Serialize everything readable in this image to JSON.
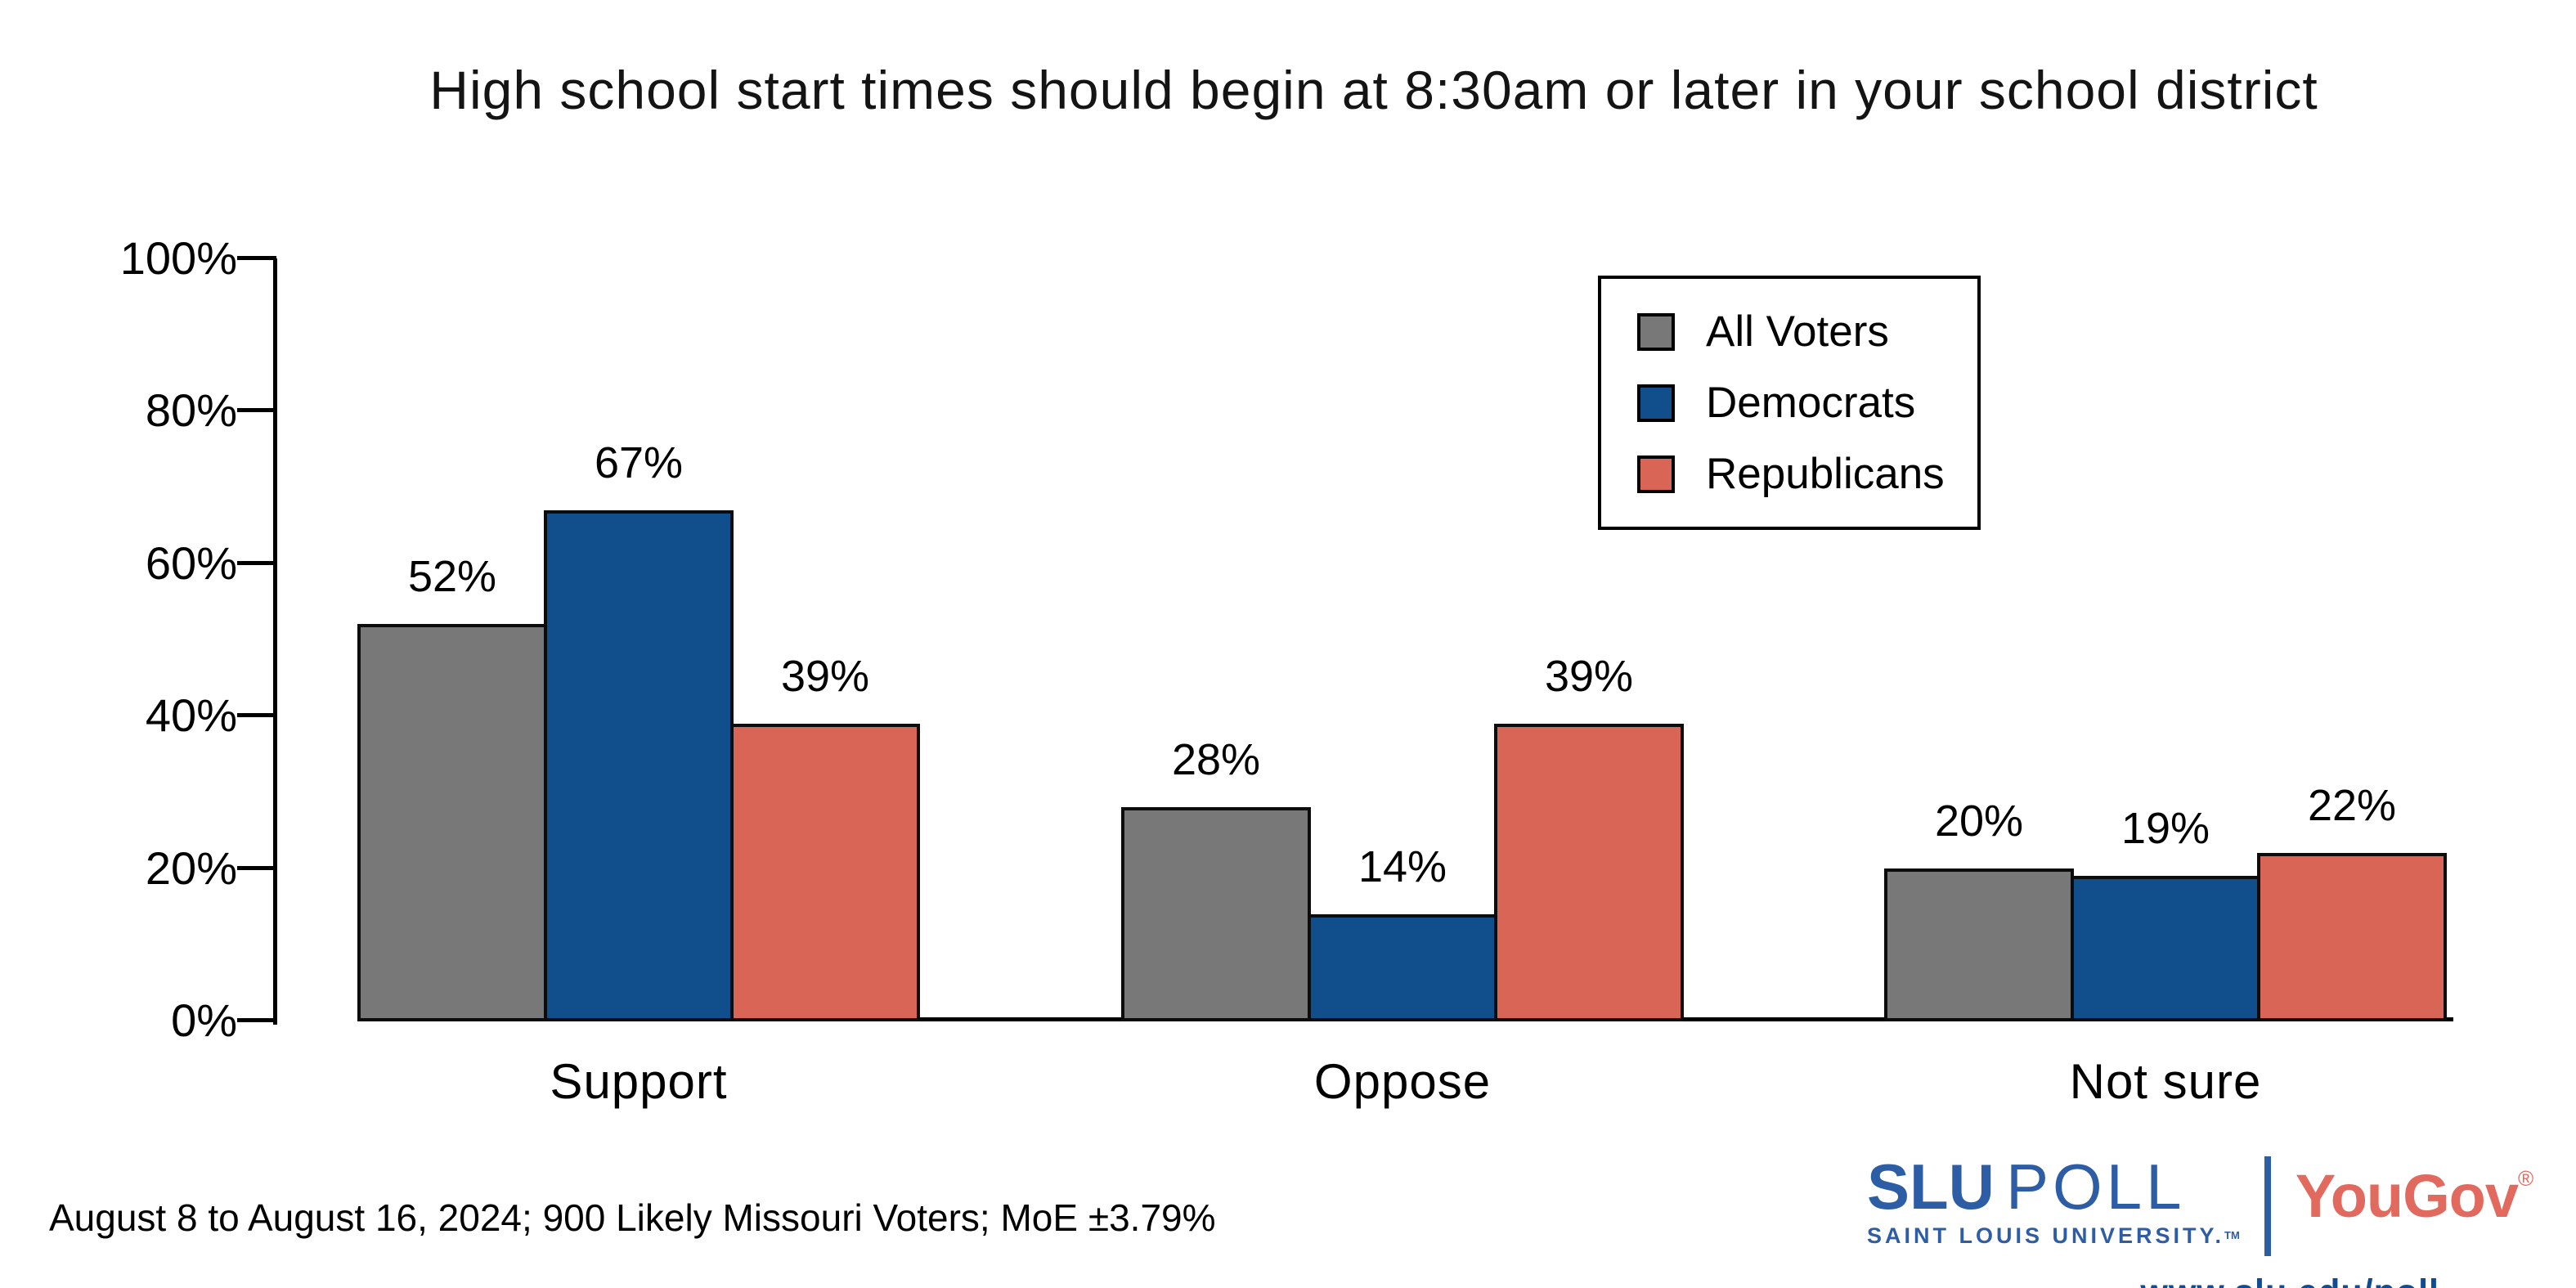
{
  "chart_data": {
    "type": "bar",
    "title": "High school start times should begin at 8:30am or later in your school district",
    "categories": [
      "Support",
      "Oppose",
      "Not sure"
    ],
    "series": [
      {
        "name": "All Voters",
        "color": "#787878",
        "values": [
          52,
          28,
          20
        ]
      },
      {
        "name": "Democrats",
        "color": "#114e8c",
        "values": [
          67,
          14,
          19
        ]
      },
      {
        "name": "Republicans",
        "color": "#d96557",
        "values": [
          39,
          39,
          22
        ]
      }
    ],
    "xlabel": "",
    "ylabel": "",
    "ylim": [
      0,
      100
    ],
    "yticks": [
      0,
      20,
      40,
      60,
      80,
      100
    ],
    "ytick_labels": [
      "0%",
      "20%",
      "40%",
      "60%",
      "80%",
      "100%"
    ],
    "value_suffix": "%",
    "bar_value_labels": true,
    "grid": false,
    "legend_position": "top-right"
  },
  "footer": {
    "note": "August 8 to August 16, 2024; 900 Likely Missouri Voters; MoE ±3.79%"
  },
  "branding": {
    "slu": "SLU",
    "poll": "POLL",
    "university": "SAINT LOUIS UNIVERSITY.",
    "tm": "TM",
    "yougov": "YouGov",
    "reg": "®",
    "url": "www.slu.edu/poll",
    "colors": {
      "slu_blue": "#2d5da4",
      "yougov_red": "#e2695d",
      "link_blue": "#0f4c96"
    }
  }
}
